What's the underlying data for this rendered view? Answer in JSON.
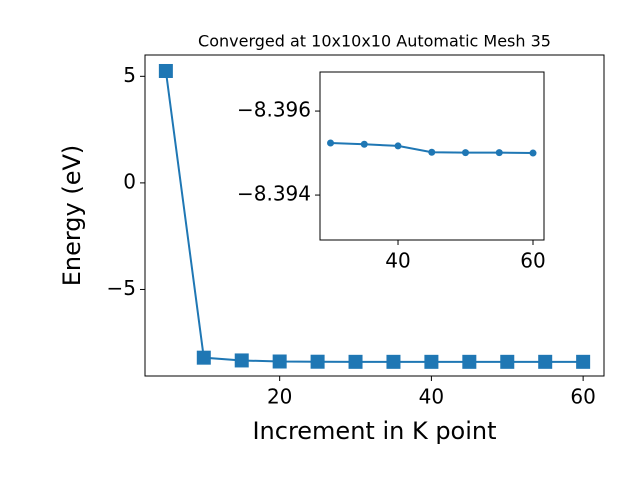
{
  "chart_data": [
    {
      "type": "line",
      "title": "Converged at 10x10x10 Automatic Mesh 35",
      "xlabel": "Increment in K point",
      "ylabel": "Energy (eV)",
      "x": [
        5,
        10,
        15,
        20,
        25,
        30,
        35,
        40,
        45,
        50,
        55,
        60
      ],
      "series": [
        {
          "name": "Energy",
          "color": "#1f77b4",
          "marker": "square",
          "values": [
            5.25,
            -8.2,
            -8.33,
            -8.38,
            -8.39,
            -8.39524,
            -8.39521,
            -8.39517,
            -8.39502,
            -8.39501,
            -8.39501,
            -8.395
          ]
        }
      ],
      "xlim": [
        2.25,
        62.75
      ],
      "ylim": [
        -9.06,
        6.0
      ],
      "xticks": [
        20,
        40,
        60
      ],
      "yticks": [
        5,
        0,
        {
          "value": -5,
          "label": "−5"
        }
      ]
    },
    {
      "type": "line",
      "x": [
        30,
        35,
        40,
        45,
        50,
        55,
        60
      ],
      "series": [
        {
          "name": "Energy",
          "color": "#1f77b4",
          "marker": "circle",
          "values": [
            -8.39524,
            -8.39521,
            -8.39517,
            -8.39502,
            -8.39501,
            -8.39501,
            -8.395
          ]
        }
      ],
      "xlim": [
        28.44,
        61.63
      ],
      "ylim": [
        -8.39293,
        -8.39693
      ],
      "xticks": [
        40,
        60
      ],
      "yticks": [
        {
          "value": -8.396,
          "label": "−8.396"
        },
        {
          "value": -8.394,
          "label": "−8.394"
        }
      ]
    }
  ]
}
